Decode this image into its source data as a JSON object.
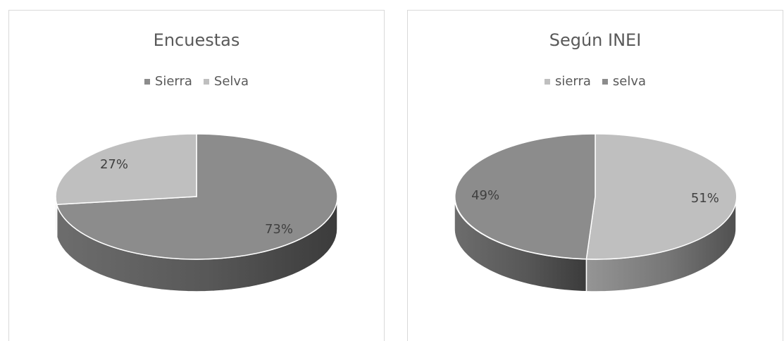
{
  "chart_data": [
    {
      "type": "pie",
      "title": "Encuestas",
      "categories": [
        "Sierra",
        "Selva"
      ],
      "values": [
        73,
        27
      ],
      "data_labels": [
        "73%",
        "27%"
      ],
      "colors": [
        "#8c8c8c",
        "#bfbfbf"
      ],
      "legend_position": "top",
      "style": "3d"
    },
    {
      "type": "pie",
      "title": "Según INEI",
      "categories": [
        "sierra",
        "selva"
      ],
      "values": [
        51,
        49
      ],
      "data_labels": [
        "51%",
        "49%"
      ],
      "colors": [
        "#bfbfbf",
        "#8c8c8c"
      ],
      "legend_position": "top",
      "style": "3d"
    }
  ]
}
